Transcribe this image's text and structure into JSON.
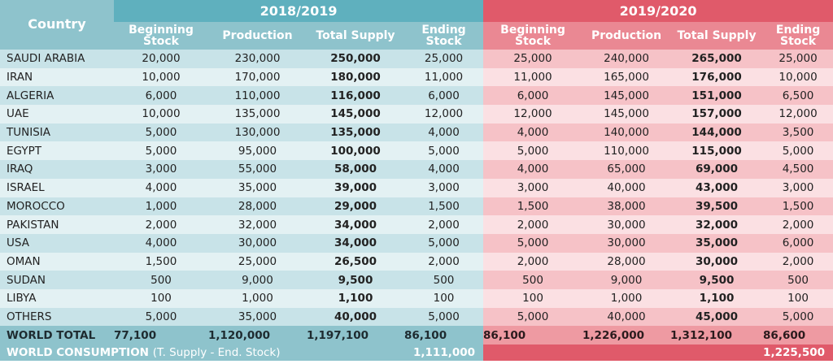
{
  "header": {
    "country": "Country",
    "year1": "2018/2019",
    "year2": "2019/2020",
    "cols": {
      "beginning1": "Beginning",
      "beginning2": "Stock",
      "production": "Production",
      "total_supply": "Total Supply",
      "ending1": "Ending",
      "ending2": "Stock"
    }
  },
  "rows": [
    {
      "country": "SAUDI ARABIA",
      "y1": [
        "20,000",
        "230,000",
        "250,000",
        "25,000"
      ],
      "y2": [
        "25,000",
        "240,000",
        "265,000",
        "25,000"
      ]
    },
    {
      "country": "IRAN",
      "y1": [
        "10,000",
        "170,000",
        "180,000",
        "11,000"
      ],
      "y2": [
        "11,000",
        "165,000",
        "176,000",
        "10,000"
      ]
    },
    {
      "country": "ALGERIA",
      "y1": [
        "6,000",
        "110,000",
        "116,000",
        "6,000"
      ],
      "y2": [
        "6,000",
        "145,000",
        "151,000",
        "6,500"
      ]
    },
    {
      "country": "UAE",
      "y1": [
        "10,000",
        "135,000",
        "145,000",
        "12,000"
      ],
      "y2": [
        "12,000",
        "145,000",
        "157,000",
        "12,000"
      ]
    },
    {
      "country": "TUNISIA",
      "y1": [
        "5,000",
        "130,000",
        "135,000",
        "4,000"
      ],
      "y2": [
        "4,000",
        "140,000",
        "144,000",
        "3,500"
      ]
    },
    {
      "country": "EGYPT",
      "y1": [
        "5,000",
        "95,000",
        "100,000",
        "5,000"
      ],
      "y2": [
        "5,000",
        "110,000",
        "115,000",
        "5,000"
      ]
    },
    {
      "country": "IRAQ",
      "y1": [
        "3,000",
        "55,000",
        "58,000",
        "4,000"
      ],
      "y2": [
        "4,000",
        "65,000",
        "69,000",
        "4,500"
      ]
    },
    {
      "country": "ISRAEL",
      "y1": [
        "4,000",
        "35,000",
        "39,000",
        "3,000"
      ],
      "y2": [
        "3,000",
        "40,000",
        "43,000",
        "3,000"
      ]
    },
    {
      "country": "MOROCCO",
      "y1": [
        "1,000",
        "28,000",
        "29,000",
        "1,500"
      ],
      "y2": [
        "1,500",
        "38,000",
        "39,500",
        "1,500"
      ]
    },
    {
      "country": "PAKISTAN",
      "y1": [
        "2,000",
        "32,000",
        "34,000",
        "2,000"
      ],
      "y2": [
        "2,000",
        "30,000",
        "32,000",
        "2,000"
      ]
    },
    {
      "country": "USA",
      "y1": [
        "4,000",
        "30,000",
        "34,000",
        "5,000"
      ],
      "y2": [
        "5,000",
        "30,000",
        "35,000",
        "6,000"
      ]
    },
    {
      "country": "OMAN",
      "y1": [
        "1,500",
        "25,000",
        "26,500",
        "2,000"
      ],
      "y2": [
        "2,000",
        "28,000",
        "30,000",
        "2,000"
      ]
    },
    {
      "country": "SUDAN",
      "y1": [
        "500",
        "9,000",
        "9,500",
        "500"
      ],
      "y2": [
        "500",
        "9,000",
        "9,500",
        "500"
      ]
    },
    {
      "country": "LIBYA",
      "y1": [
        "100",
        "1,000",
        "1,100",
        "100"
      ],
      "y2": [
        "100",
        "1,000",
        "1,100",
        "100"
      ]
    },
    {
      "country": "OTHERS",
      "y1": [
        "5,000",
        "35,000",
        "40,000",
        "5,000"
      ],
      "y2": [
        "5,000",
        "40,000",
        "45,000",
        "5,000"
      ]
    }
  ],
  "total": {
    "label": "WORLD TOTAL",
    "y1": [
      "77,100",
      "1,120,000",
      "1,197,100",
      "86,100"
    ],
    "y2": [
      "86,100",
      "1,226,000",
      "1,312,100",
      "86,600"
    ]
  },
  "consumption": {
    "label": "WORLD CONSUMPTION",
    "note": "(T. Supply - End. Stock)",
    "y1": "1,111,000",
    "y2": "1,225,500"
  },
  "colors": {
    "teal_header": "#5fb0be",
    "teal_sub": "#8ec3cc",
    "red_header": "#e05a6a",
    "red_sub": "#ea8893"
  }
}
